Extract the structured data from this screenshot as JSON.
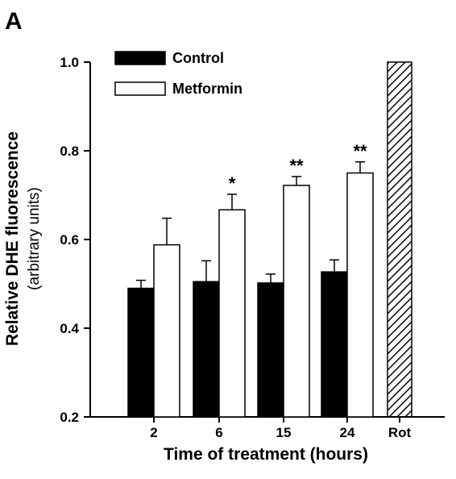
{
  "panel_label": "A",
  "chart_data": {
    "type": "bar",
    "xlabel": "Time of treatment (hours)",
    "ylabel": "Relative DHE fluorescence",
    "ylabel_sub": "(arbitrary units)",
    "ylim": [
      0.2,
      1.0
    ],
    "yticks": [
      "0.2",
      "0.4",
      "0.6",
      "0.8",
      "1.0"
    ],
    "categories": [
      "2",
      "6",
      "15",
      "24",
      "Rot"
    ],
    "legend_position": "top-left",
    "series": [
      {
        "name": "Control",
        "fill": "#000000",
        "values": [
          0.49,
          0.505,
          0.502,
          0.527,
          null
        ],
        "errors": [
          0.018,
          0.047,
          0.02,
          0.027,
          null
        ]
      },
      {
        "name": "Metformin",
        "fill": "#ffffff",
        "values": [
          0.588,
          0.667,
          0.722,
          0.75,
          null
        ],
        "errors": [
          0.06,
          0.035,
          0.02,
          0.025,
          null
        ],
        "significance": [
          "",
          "*",
          "**",
          "**",
          ""
        ]
      },
      {
        "name": "Rot",
        "fill": "hatched",
        "values": [
          null,
          null,
          null,
          null,
          1.0
        ],
        "errors": [
          null,
          null,
          null,
          null,
          null
        ]
      }
    ]
  }
}
